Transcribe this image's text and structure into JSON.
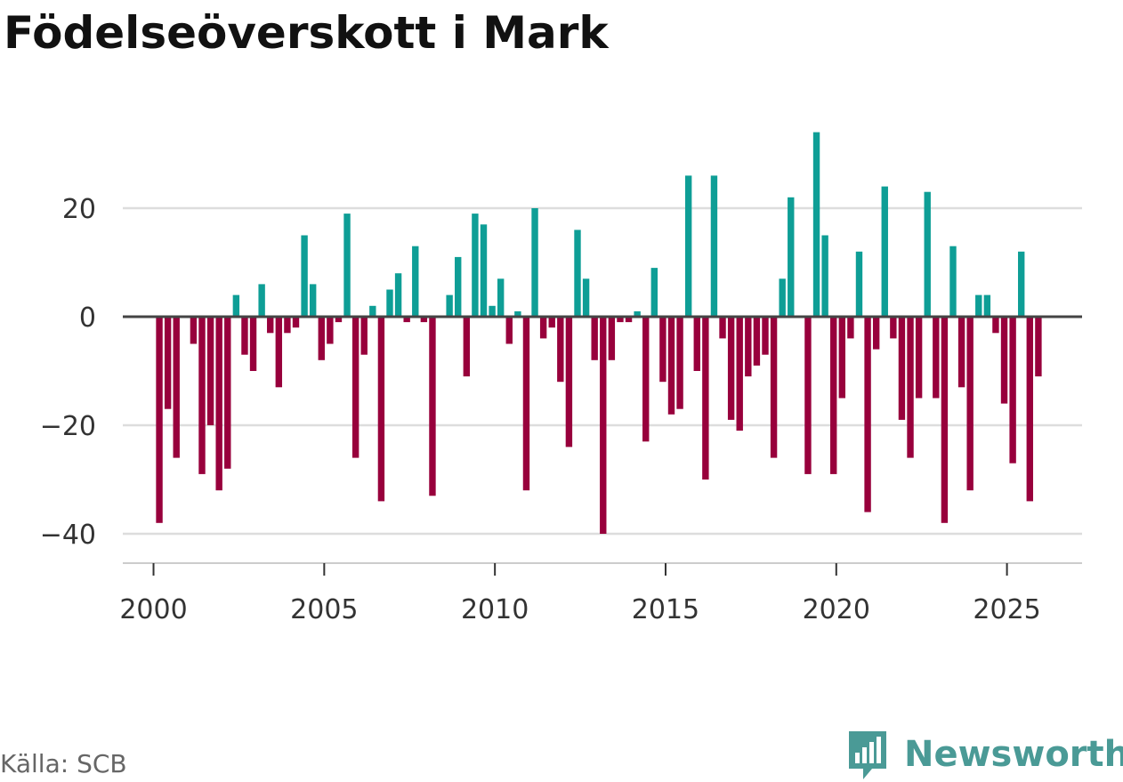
{
  "title": "Födelseöverskott i Mark",
  "source": "Källa: SCB",
  "brand": {
    "name": "Newsworthy",
    "icon": "newsworthy-logo-icon",
    "color": "#4a9a96"
  },
  "chart_data": {
    "type": "bar",
    "title": "Födelseöverskott i Mark",
    "xlabel": "",
    "ylabel": "",
    "xlim": [
      1999.1,
      2027.2
    ],
    "ylim": [
      -40,
      34
    ],
    "xticks": [
      2000,
      2005,
      2010,
      2015,
      2020,
      2025
    ],
    "yticks": [
      20,
      0,
      -20,
      -40
    ],
    "ytick_labels": [
      "20",
      "0",
      "−20",
      "−40"
    ],
    "grid": true,
    "legend": "none",
    "colors": {
      "positive": "#0e9e96",
      "negative": "#98003c",
      "zero_line": "#444444",
      "grid": "#dddddd"
    },
    "x": [
      2000.17,
      2000.42,
      2000.67,
      2000.92,
      2001.17,
      2001.42,
      2001.67,
      2001.92,
      2002.17,
      2002.42,
      2002.67,
      2002.92,
      2003.17,
      2003.42,
      2003.67,
      2003.92,
      2004.17,
      2004.42,
      2004.67,
      2004.92,
      2005.17,
      2005.42,
      2005.67,
      2005.92,
      2006.17,
      2006.42,
      2006.67,
      2006.92,
      2007.17,
      2007.42,
      2007.67,
      2007.92,
      2008.17,
      2008.42,
      2008.67,
      2008.92,
      2009.17,
      2009.42,
      2009.67,
      2009.92,
      2010.17,
      2010.42,
      2010.67,
      2010.92,
      2011.17,
      2011.42,
      2011.67,
      2011.92,
      2012.17,
      2012.42,
      2012.67,
      2012.92,
      2013.17,
      2013.42,
      2013.67,
      2013.92,
      2014.17,
      2014.42,
      2014.67,
      2014.92,
      2015.17,
      2015.42,
      2015.67,
      2015.92,
      2016.17,
      2016.42,
      2016.67,
      2016.92,
      2017.17,
      2017.42,
      2017.67,
      2017.92,
      2018.17,
      2018.42,
      2018.67,
      2018.92,
      2019.17,
      2019.42,
      2019.67,
      2019.92,
      2020.17,
      2020.42,
      2020.67,
      2020.92,
      2021.17,
      2021.42,
      2021.67,
      2021.92,
      2022.17,
      2022.42,
      2022.67,
      2022.92,
      2023.17,
      2023.42,
      2023.67,
      2023.92,
      2024.17,
      2024.42,
      2024.67,
      2024.92,
      2025.17,
      2025.42,
      2025.67,
      2025.92
    ],
    "values": [
      -38,
      -17,
      -26,
      0,
      -5,
      -29,
      -20,
      -32,
      -28,
      4,
      -7,
      -10,
      6,
      -3,
      -13,
      -3,
      -2,
      15,
      6,
      -8,
      -5,
      -1,
      19,
      -26,
      -7,
      2,
      -34,
      5,
      8,
      -1,
      13,
      -1,
      -33,
      0,
      4,
      11,
      -11,
      19,
      17,
      2,
      7,
      -5,
      1,
      -32,
      20,
      -4,
      -2,
      -12,
      -24,
      16,
      7,
      -8,
      -40,
      -8,
      -1,
      -1,
      1,
      -23,
      9,
      -12,
      -18,
      -17,
      26,
      -10,
      -30,
      26,
      -4,
      -19,
      -21,
      -11,
      -9,
      -7,
      -26,
      7,
      22,
      0,
      -29,
      34,
      15,
      -29,
      -15,
      -4,
      12,
      -36,
      -6,
      24,
      -4,
      -19,
      -26,
      -15,
      23,
      -15,
      -38,
      13,
      -13,
      -32,
      4,
      4,
      -3,
      -16,
      -27,
      12,
      -34,
      -11
    ]
  }
}
